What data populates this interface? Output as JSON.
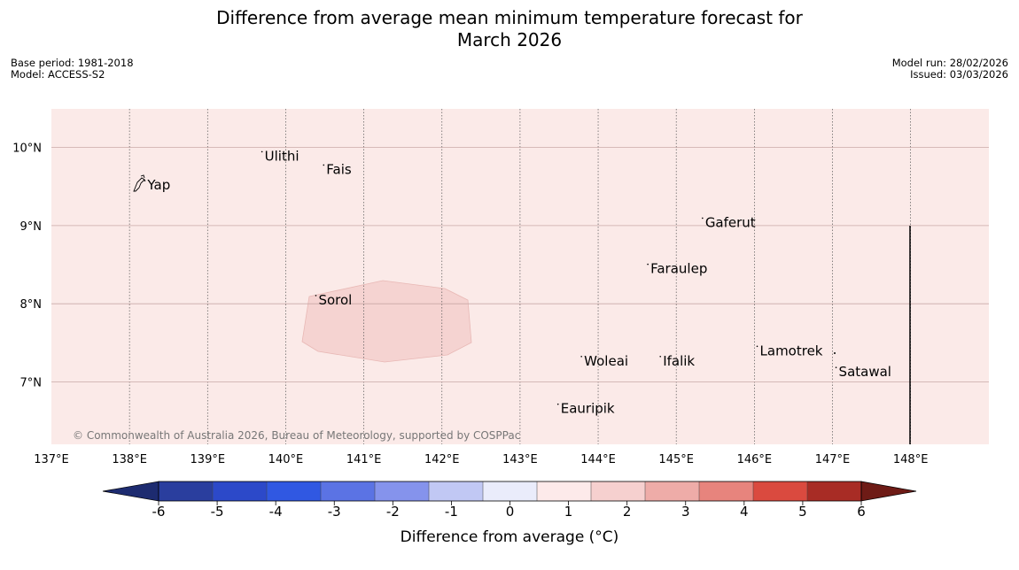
{
  "title": {
    "line1": "Difference from average mean minimum temperature forecast for",
    "line2": "March 2026"
  },
  "meta": {
    "base_period": "Base period: 1981-2018",
    "model": "Model: ACCESS-S2",
    "model_run": "Model run: 28/02/2026",
    "issued": "Issued: 03/03/2026"
  },
  "map": {
    "lon_range": [
      137,
      149
    ],
    "lat_range": [
      6.2,
      10.5
    ],
    "lon_ticks": [
      137,
      138,
      139,
      140,
      141,
      142,
      143,
      144,
      145,
      146,
      147,
      148
    ],
    "lon_tick_labels": [
      "137°E",
      "138°E",
      "139°E",
      "140°E",
      "141°E",
      "142°E",
      "143°E",
      "144°E",
      "145°E",
      "146°E",
      "147°E",
      "148°E"
    ],
    "lat_ticks": [
      7,
      8,
      9,
      10
    ],
    "lat_tick_labels": [
      "7°N",
      "8°N",
      "9°N",
      "10°N"
    ],
    "background_color": "#fbeae8",
    "anomaly_region_color": "#f5d3d1",
    "places": [
      {
        "name": "Yap",
        "lon": 138.23,
        "lat": 9.53
      },
      {
        "name": "Ulithi",
        "lon": 139.73,
        "lat": 9.9
      },
      {
        "name": "Fais",
        "lon": 140.52,
        "lat": 9.73
      },
      {
        "name": "Gaferut",
        "lon": 145.37,
        "lat": 9.05
      },
      {
        "name": "Faraulep",
        "lon": 144.67,
        "lat": 8.46
      },
      {
        "name": "Sorol",
        "lon": 140.42,
        "lat": 8.06
      },
      {
        "name": "Lamotrek",
        "lon": 146.07,
        "lat": 7.41
      },
      {
        "name": "Woleai",
        "lon": 143.82,
        "lat": 7.28
      },
      {
        "name": "Ifalik",
        "lon": 144.83,
        "lat": 7.28
      },
      {
        "name": "Satawal",
        "lon": 147.08,
        "lat": 7.14
      },
      {
        "name": "Eauripik",
        "lon": 143.52,
        "lat": 6.67
      }
    ],
    "copyright": "© Commonwealth of Australia 2026, Bureau of Meteorology, supported by COSPPac"
  },
  "colorbar": {
    "label": "Difference from average (°C)",
    "tick_labels": [
      "-6",
      "-5",
      "-4",
      "-3",
      "-2",
      "-1",
      "0",
      "1",
      "2",
      "3",
      "4",
      "5",
      "6"
    ],
    "colors": [
      "#2a3e9e",
      "#2c49c9",
      "#3058e2",
      "#5b73e4",
      "#8593ec",
      "#c1c8f4",
      "#eaecfb",
      "#fdeaea",
      "#f6d0cf",
      "#eeaca8",
      "#e7847d",
      "#da4a3f",
      "#a82c25"
    ],
    "under_color": "#1d2b70",
    "over_color": "#6e1b16"
  }
}
